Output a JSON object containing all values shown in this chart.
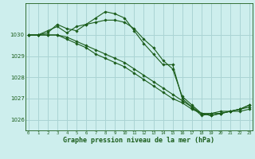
{
  "bg_color": "#cdeeed",
  "grid_color": "#aad4d4",
  "line_color": "#1a5c1a",
  "xlabel": "Graphe pression niveau de la mer (hPa)",
  "xlabel_color": "#1a5c1a",
  "xticks": [
    0,
    1,
    2,
    3,
    4,
    5,
    6,
    7,
    8,
    9,
    10,
    11,
    12,
    13,
    14,
    15,
    16,
    17,
    18,
    19,
    20,
    21,
    22,
    23
  ],
  "yticks": [
    1026,
    1027,
    1028,
    1029,
    1030
  ],
  "ylim": [
    1025.5,
    1031.5
  ],
  "xlim": [
    -0.3,
    23.3
  ],
  "series": [
    [
      1030.0,
      1030.0,
      1030.1,
      1030.5,
      1030.3,
      1030.2,
      1030.5,
      1030.8,
      1031.1,
      1031.0,
      1030.8,
      1030.2,
      1029.6,
      1029.1,
      1028.6,
      1028.6,
      1027.0,
      1026.6,
      1026.2,
      1026.3,
      1026.3,
      1026.4,
      1026.4,
      1026.5
    ],
    [
      1030.0,
      1030.0,
      1030.2,
      1030.4,
      1030.1,
      1030.4,
      1030.5,
      1030.6,
      1030.7,
      1030.7,
      1030.6,
      1030.3,
      1029.8,
      1029.4,
      1028.8,
      1028.4,
      1027.1,
      1026.7,
      1026.3,
      1026.3,
      1026.4,
      1026.4,
      1026.5,
      1026.6
    ],
    [
      1030.0,
      1030.0,
      1030.0,
      1030.0,
      1029.9,
      1029.7,
      1029.5,
      1029.3,
      1029.1,
      1028.9,
      1028.7,
      1028.4,
      1028.1,
      1027.8,
      1027.5,
      1027.2,
      1026.9,
      1026.6,
      1026.3,
      1026.2,
      1026.3,
      1026.4,
      1026.5,
      1026.7
    ],
    [
      1030.0,
      1030.0,
      1030.0,
      1030.0,
      1029.8,
      1029.6,
      1029.4,
      1029.1,
      1028.9,
      1028.7,
      1028.5,
      1028.2,
      1027.9,
      1027.6,
      1027.3,
      1027.0,
      1026.8,
      1026.5,
      1026.3,
      1026.2,
      1026.3,
      1026.4,
      1026.5,
      1026.7
    ]
  ]
}
